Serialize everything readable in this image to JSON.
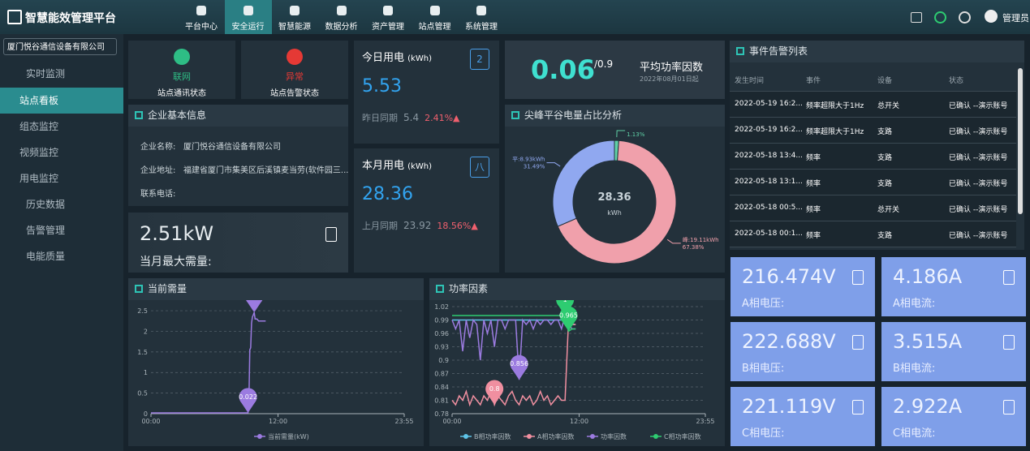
{
  "header": {
    "title": "智慧能效管理平台",
    "nav": [
      "平台中心",
      "安全运行",
      "智慧能源",
      "数据分析",
      "资产管理",
      "站点管理",
      "系统管理"
    ],
    "user": "管理员"
  },
  "sidebar": {
    "company": "厦门悦谷通信设备有限公司",
    "menu": [
      {
        "label": "实时监测",
        "children": [
          "站点看板",
          "组态监控",
          "视频监控",
          "用电监控"
        ]
      },
      {
        "label": "历史数据"
      },
      {
        "label": "告警管理"
      },
      {
        "label": "电能质量"
      }
    ]
  },
  "status": [
    {
      "label": "联网",
      "caption": "站点通讯状态"
    },
    {
      "label": "异常",
      "caption": "站点告警状态"
    }
  ],
  "today": {
    "title": "今日用电",
    "unit": "(kWh)",
    "value": "5.53",
    "compare_label": "昨日同期",
    "compare_value": "5.4",
    "change": "2.41%",
    "icon": "2"
  },
  "month": {
    "title": "本月用电",
    "unit": "(kWh)",
    "value": "28.36",
    "compare_label": "上月同期",
    "compare_value": "23.92",
    "change": "18.56%",
    "icon": "八"
  },
  "power_factor": {
    "value": "0.06",
    "target": "/0.9",
    "title": "平均功率因数",
    "date": "2022年08月01日起"
  },
  "company_info": {
    "title": "企业基本信息",
    "rows": [
      {
        "label": "企业名称:",
        "value": "厦门悦谷通信设备有限公司"
      },
      {
        "label": "企业地址:",
        "value": "福建省厦门市集美区后溪镇麦当劳(软件园三..."
      },
      {
        "label": "联系电话:"
      }
    ]
  },
  "max_demand": {
    "value": "2.51kW",
    "label": "当月最大需量:"
  },
  "events": {
    "title": "事件告警列表",
    "columns": [
      "发生时间",
      "事件",
      "设备",
      "状态"
    ],
    "rows": [
      [
        "2022-05-19 16:2...",
        "频率超限大于1Hz",
        "总开关",
        "已确认 --演示账号"
      ],
      [
        "2022-05-19 16:2...",
        "频率超限大于1Hz",
        "支路",
        "已确认 --演示账号"
      ],
      [
        "2022-05-18 13:4...",
        "频率",
        "支路",
        "已确认 --演示账号"
      ],
      [
        "2022-05-18 13:1...",
        "频率",
        "支路",
        "已确认 --演示账号"
      ],
      [
        "2022-05-18 00:5...",
        "频率",
        "总开关",
        "已确认 --演示账号"
      ],
      [
        "2022-05-18 00:1...",
        "频率",
        "支路",
        "已确认 --演示账号"
      ]
    ]
  },
  "metrics": [
    {
      "value": "216.474V",
      "label": "A相电压:"
    },
    {
      "value": "4.186A",
      "label": "A相电流:"
    },
    {
      "value": "222.688V",
      "label": "B相电压:"
    },
    {
      "value": "3.515A",
      "label": "B相电流:"
    },
    {
      "value": "221.119V",
      "label": "C相电压:"
    },
    {
      "value": "2.922A",
      "label": "C相电流:"
    }
  ],
  "chart_data": [
    {
      "type": "line",
      "title": "当前需量",
      "x": [
        0,
        540,
        550,
        555,
        560,
        565,
        570,
        575,
        580,
        585,
        590,
        600,
        610,
        620,
        630,
        640,
        650
      ],
      "series": [
        {
          "name": "当前需量(kW)",
          "color": "#9b7be0",
          "values": [
            0.02,
            0.02,
            0.022,
            0.3,
            1.55,
            1.6,
            2.2,
            2.35,
            2.4,
            2.459,
            2.3,
            2.3,
            2.25,
            2.25,
            2.25,
            2.25,
            2.25
          ]
        }
      ],
      "mark_points": [
        {
          "series": 0,
          "x": 585,
          "value": 2.459
        },
        {
          "series": 0,
          "x": 550,
          "value": 0.022
        }
      ],
      "xlim": [
        0,
        1435
      ],
      "xticks": [
        {
          "value": 0,
          "label": "00:00"
        },
        {
          "value": 720,
          "label": "12:00"
        },
        {
          "value": 1435,
          "label": "23:55"
        }
      ],
      "ylim": [
        0,
        2.6
      ],
      "yticks": [
        0,
        0.5,
        1,
        1.5,
        2,
        2.5
      ],
      "grid": true
    },
    {
      "type": "line",
      "title": "功率因素",
      "x": [
        0,
        20,
        40,
        60,
        80,
        100,
        120,
        140,
        160,
        180,
        200,
        220,
        240,
        260,
        280,
        300,
        320,
        340,
        360,
        380,
        400,
        420,
        440,
        460,
        480,
        500,
        520,
        540,
        560,
        580,
        600,
        620,
        640,
        660,
        680,
        700
      ],
      "series": [
        {
          "name": "B相功率因数",
          "color": "#5ec4e8",
          "values": [
            0.99,
            0.99,
            0.99,
            0.99,
            0.99,
            0.99,
            0.99,
            0.99,
            0.99,
            0.99,
            0.99,
            0.99,
            0.99,
            0.99,
            0.99,
            0.99,
            0.99,
            0.99,
            0.99,
            0.99,
            0.99,
            0.99,
            0.99,
            0.99,
            0.99,
            0.99,
            0.99,
            0.99,
            0.99,
            0.99,
            0.99,
            0.99,
            0.99,
            0.98,
            0.98,
            0.98
          ]
        },
        {
          "name": "A相功率因数",
          "color": "#f08fa0",
          "values": [
            0.81,
            0.8,
            0.82,
            0.81,
            0.83,
            0.8,
            0.82,
            0.81,
            0.8,
            0.82,
            0.81,
            0.83,
            0.8,
            0.82,
            0.81,
            0.8,
            0.82,
            0.83,
            0.81,
            0.8,
            0.82,
            0.81,
            0.82,
            0.8,
            0.81,
            0.83,
            0.81,
            0.82,
            0.8,
            0.81,
            0.82,
            0.81,
            0.81,
            0.99,
            0.98,
            0.98
          ]
        },
        {
          "name": "功率因数",
          "color": "#9b7be0",
          "values": [
            0.99,
            0.97,
            0.99,
            0.92,
            0.99,
            0.95,
            0.99,
            0.98,
            0.9,
            0.99,
            0.96,
            0.99,
            0.93,
            0.99,
            0.99,
            0.97,
            0.99,
            0.99,
            0.99,
            0.856,
            0.99,
            0.98,
            0.99,
            0.97,
            0.99,
            0.98,
            0.99,
            0.99,
            0.98,
            0.99,
            0.99,
            0.97,
            1.0,
            0.98,
            0.97,
            0.97
          ]
        },
        {
          "name": "C相功率因数",
          "color": "#2ecc71",
          "values": [
            1.0,
            1.0,
            1.0,
            1.0,
            1.0,
            1.0,
            1.0,
            1.0,
            1.0,
            1.0,
            1.0,
            1.0,
            1.0,
            1.0,
            1.0,
            1.0,
            1.0,
            1.0,
            1.0,
            1.0,
            1.0,
            1.0,
            1.0,
            1.0,
            1.0,
            1.0,
            1.0,
            1.0,
            1.0,
            1.0,
            1.0,
            1.0,
            1.0,
            0.965,
            0.97,
            0.97
          ]
        }
      ],
      "mark_points": [
        {
          "series": 3,
          "x": 640,
          "value": 1
        },
        {
          "series": 3,
          "x": 660,
          "value": 0.965
        },
        {
          "series": 2,
          "x": 380,
          "value": 0.856
        },
        {
          "series": 1,
          "x": 240,
          "value": 0.8
        }
      ],
      "xlim": [
        0,
        1435
      ],
      "xticks": [
        {
          "value": 0,
          "label": "00:00"
        },
        {
          "value": 720,
          "label": "12:00"
        },
        {
          "value": 1435,
          "label": "23:55"
        }
      ],
      "ylim": [
        0.78,
        1.02
      ],
      "yticks": [
        0.78,
        0.81,
        0.84,
        0.87,
        0.9,
        0.93,
        0.96,
        0.99,
        1.02
      ],
      "grid": true
    },
    {
      "type": "pie",
      "title": "尖峰平谷电量占比分析",
      "center_value": "28.36",
      "center_unit": "kWh",
      "categories": [
        null,
        "峰",
        "平"
      ],
      "labels": [
        null,
        "峰:19.11kWh",
        "平:8.93kWh"
      ],
      "values": [
        1.13,
        67.38,
        31.49
      ],
      "value_labels": [
        "1.13%",
        "67.38%",
        "31.49%"
      ],
      "colors": [
        "#5fd0a6",
        "#f0a0ab",
        "#90a8f0"
      ]
    }
  ]
}
